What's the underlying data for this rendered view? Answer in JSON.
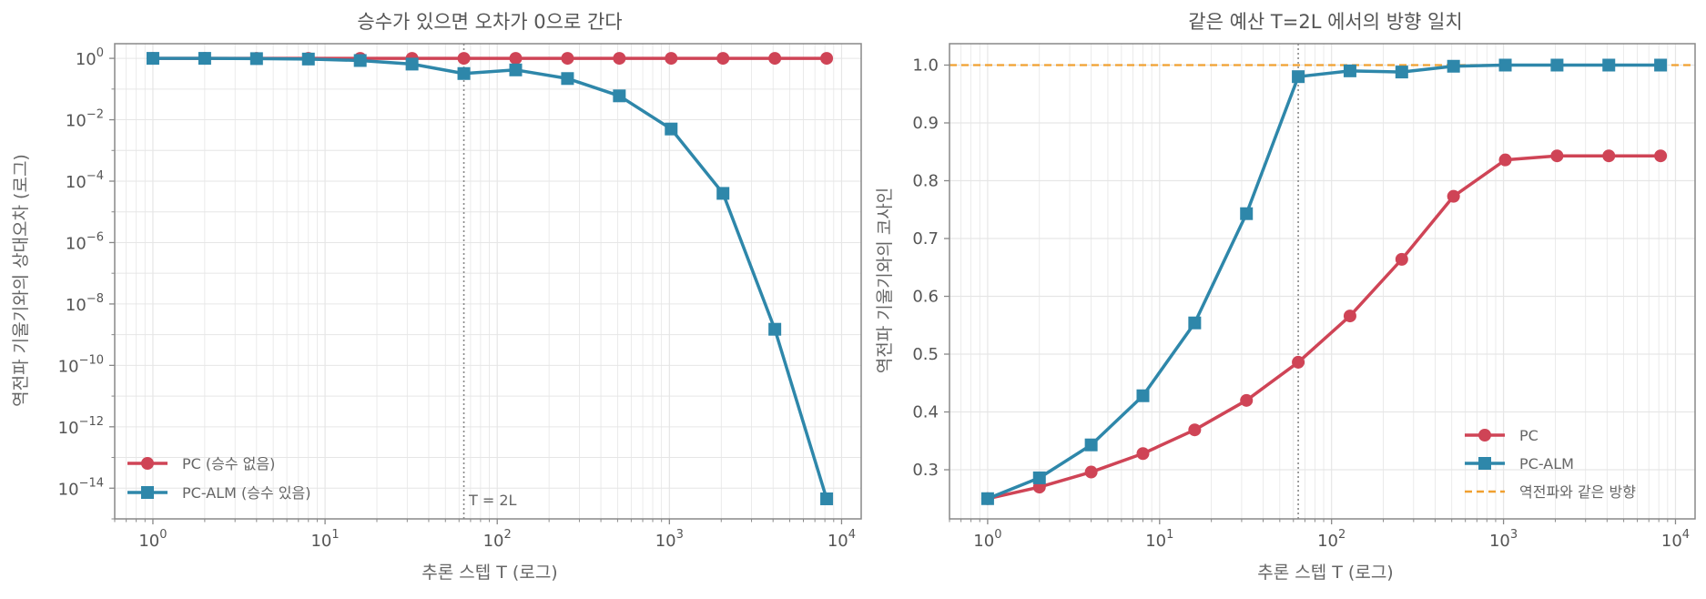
{
  "colors": {
    "pc": "#cf4456",
    "pc_alm": "#2e87aa",
    "reference": "#f0a030",
    "marker_line": "#888888",
    "grid": "#e6e6e6",
    "frame": "#888888"
  },
  "chart_data": [
    {
      "type": "line",
      "title": "승수가 있으면 오차가 0으로 간다",
      "xlabel": "추론 스텝 T (로그)",
      "ylabel": "역전파 기울기와의 상대오차 (로그)",
      "xscale": "log",
      "yscale": "log",
      "xlim": [
        0.6,
        13000
      ],
      "ylim": [
        1e-15,
        3
      ],
      "grid": true,
      "legend_position": "lower-left",
      "x_ticks": [
        {
          "value": 1,
          "label": "10",
          "exp": "0"
        },
        {
          "value": 10,
          "label": "10",
          "exp": "1"
        },
        {
          "value": 100,
          "label": "10",
          "exp": "2"
        },
        {
          "value": 1000,
          "label": "10",
          "exp": "3"
        },
        {
          "value": 10000,
          "label": "10",
          "exp": "4"
        }
      ],
      "y_ticks": [
        {
          "value": 1,
          "label": "10",
          "exp": "0"
        },
        {
          "value": 0.01,
          "label": "10",
          "exp": "−2"
        },
        {
          "value": 0.0001,
          "label": "10",
          "exp": "−4"
        },
        {
          "value": 1e-06,
          "label": "10",
          "exp": "−6"
        },
        {
          "value": 1e-08,
          "label": "10",
          "exp": "−8"
        },
        {
          "value": 1e-10,
          "label": "10",
          "exp": "−10"
        },
        {
          "value": 1e-12,
          "label": "10",
          "exp": "−12"
        },
        {
          "value": 1e-14,
          "label": "10",
          "exp": "−14"
        }
      ],
      "vline": {
        "x": 64,
        "label": "T = 2L"
      },
      "x": [
        1,
        2,
        4,
        8,
        16,
        32,
        64,
        128,
        256,
        512,
        1024,
        2048,
        4096,
        8192
      ],
      "series": [
        {
          "name": "PC (승수 없음)",
          "color_key": "pc",
          "marker": "circle",
          "values": [
            1.0,
            1.0,
            1.0,
            1.0,
            1.0,
            1.0,
            1.0,
            1.0,
            1.0,
            1.0,
            1.0,
            1.0,
            1.0,
            1.0
          ]
        },
        {
          "name": "PC-ALM (승수 있음)",
          "color_key": "pc_alm",
          "marker": "square",
          "values": [
            1.0,
            1.0,
            0.98,
            0.95,
            0.85,
            0.65,
            0.32,
            0.42,
            0.22,
            0.06,
            0.005,
            4e-05,
            1.5e-09,
            4.5e-15
          ]
        }
      ]
    },
    {
      "type": "line",
      "title": "같은 예산 T=2L 에서의 방향 일치",
      "xlabel": "추론 스텝 T (로그)",
      "ylabel": "역전파 기울기와의 코사인",
      "xscale": "log",
      "yscale": "linear",
      "xlim": [
        0.6,
        13000
      ],
      "ylim": [
        0.215,
        1.037
      ],
      "grid": true,
      "legend_position": "lower-right",
      "x_ticks": [
        {
          "value": 1,
          "label": "10",
          "exp": "0"
        },
        {
          "value": 10,
          "label": "10",
          "exp": "1"
        },
        {
          "value": 100,
          "label": "10",
          "exp": "2"
        },
        {
          "value": 1000,
          "label": "10",
          "exp": "3"
        },
        {
          "value": 10000,
          "label": "10",
          "exp": "4"
        }
      ],
      "y_ticks": [
        {
          "value": 0.3,
          "label": "0.3"
        },
        {
          "value": 0.4,
          "label": "0.4"
        },
        {
          "value": 0.5,
          "label": "0.5"
        },
        {
          "value": 0.6,
          "label": "0.6"
        },
        {
          "value": 0.7,
          "label": "0.7"
        },
        {
          "value": 0.8,
          "label": "0.8"
        },
        {
          "value": 0.9,
          "label": "0.9"
        },
        {
          "value": 1.0,
          "label": "1.0"
        }
      ],
      "vline": {
        "x": 64,
        "label": ""
      },
      "hline": {
        "y": 1.0,
        "name": "역전파와 같은 방향"
      },
      "x": [
        1,
        2,
        4,
        8,
        16,
        32,
        64,
        128,
        256,
        512,
        1024,
        2048,
        4096,
        8192
      ],
      "series": [
        {
          "name": "PC",
          "color_key": "pc",
          "marker": "circle",
          "values": [
            0.25,
            0.27,
            0.296,
            0.328,
            0.369,
            0.42,
            0.486,
            0.566,
            0.664,
            0.773,
            0.836,
            0.843,
            0.843,
            0.843
          ]
        },
        {
          "name": "PC-ALM",
          "color_key": "pc_alm",
          "marker": "square",
          "values": [
            0.25,
            0.286,
            0.343,
            0.428,
            0.554,
            0.743,
            0.98,
            0.99,
            0.988,
            0.998,
            1.0,
            1.0,
            1.0,
            1.0
          ]
        }
      ]
    }
  ]
}
